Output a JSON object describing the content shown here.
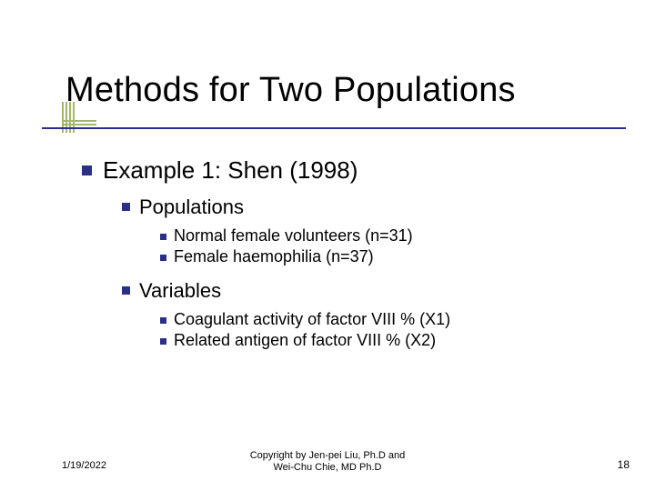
{
  "title": "Methods for Two Populations",
  "colors": {
    "bullet": "#2b2f87",
    "underline": "#2b2f87",
    "decor": "#a3b86c",
    "text": "#000000",
    "background": "#ffffff"
  },
  "content": {
    "lvl1": {
      "text": "Example 1: Shen (1998)",
      "lvl2": [
        {
          "text": "Populations",
          "lvl3": [
            "Normal female volunteers (n=31)",
            "Female haemophilia (n=37)"
          ]
        },
        {
          "text": "Variables",
          "lvl3": [
            "Coagulant activity of factor VIII % (X1)",
            "Related antigen of factor VIII % (X2)"
          ]
        }
      ]
    }
  },
  "footer": {
    "date": "1/19/2022",
    "copyright_line1": "Copyright by Jen-pei Liu, Ph.D and",
    "copyright_line2": "Wei-Chu Chie, MD Ph.D",
    "page": "18"
  }
}
